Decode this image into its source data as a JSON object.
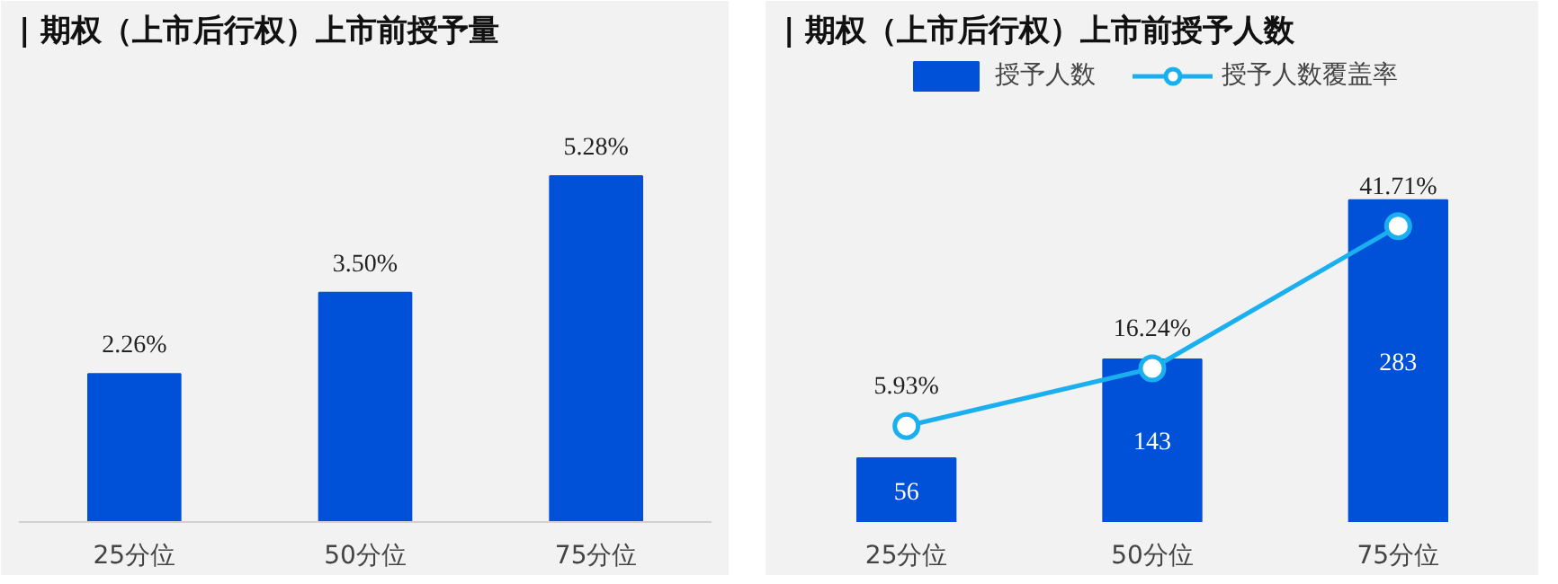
{
  "chart_data": [
    {
      "type": "bar",
      "title": "| 期权（上市后行权）上市前授予量",
      "categories": [
        "25分位",
        "50分位",
        "75分位"
      ],
      "values": [
        2.26,
        3.5,
        5.28
      ],
      "value_labels": [
        "2.26%",
        "3.50%",
        "5.28%"
      ],
      "color": "#0050d8",
      "grid": false,
      "legend": false
    },
    {
      "type": "bar",
      "title": "| 期权（上市后行权）上市前授予人数",
      "categories": [
        "25分位",
        "50分位",
        "75分位"
      ],
      "legend": "top",
      "grid": false,
      "series": [
        {
          "name": "授予人数",
          "type": "bar",
          "color": "#0050d8",
          "values": [
            56,
            143,
            283
          ],
          "data_labels": true
        },
        {
          "name": "授予人数覆盖率",
          "type": "line",
          "axis": "y2",
          "color": "#1ab0f0",
          "marker": "circle",
          "values": [
            5.93,
            16.24,
            41.71
          ],
          "value_labels": [
            "5.93%",
            "16.24%",
            "41.71%"
          ]
        }
      ]
    }
  ]
}
